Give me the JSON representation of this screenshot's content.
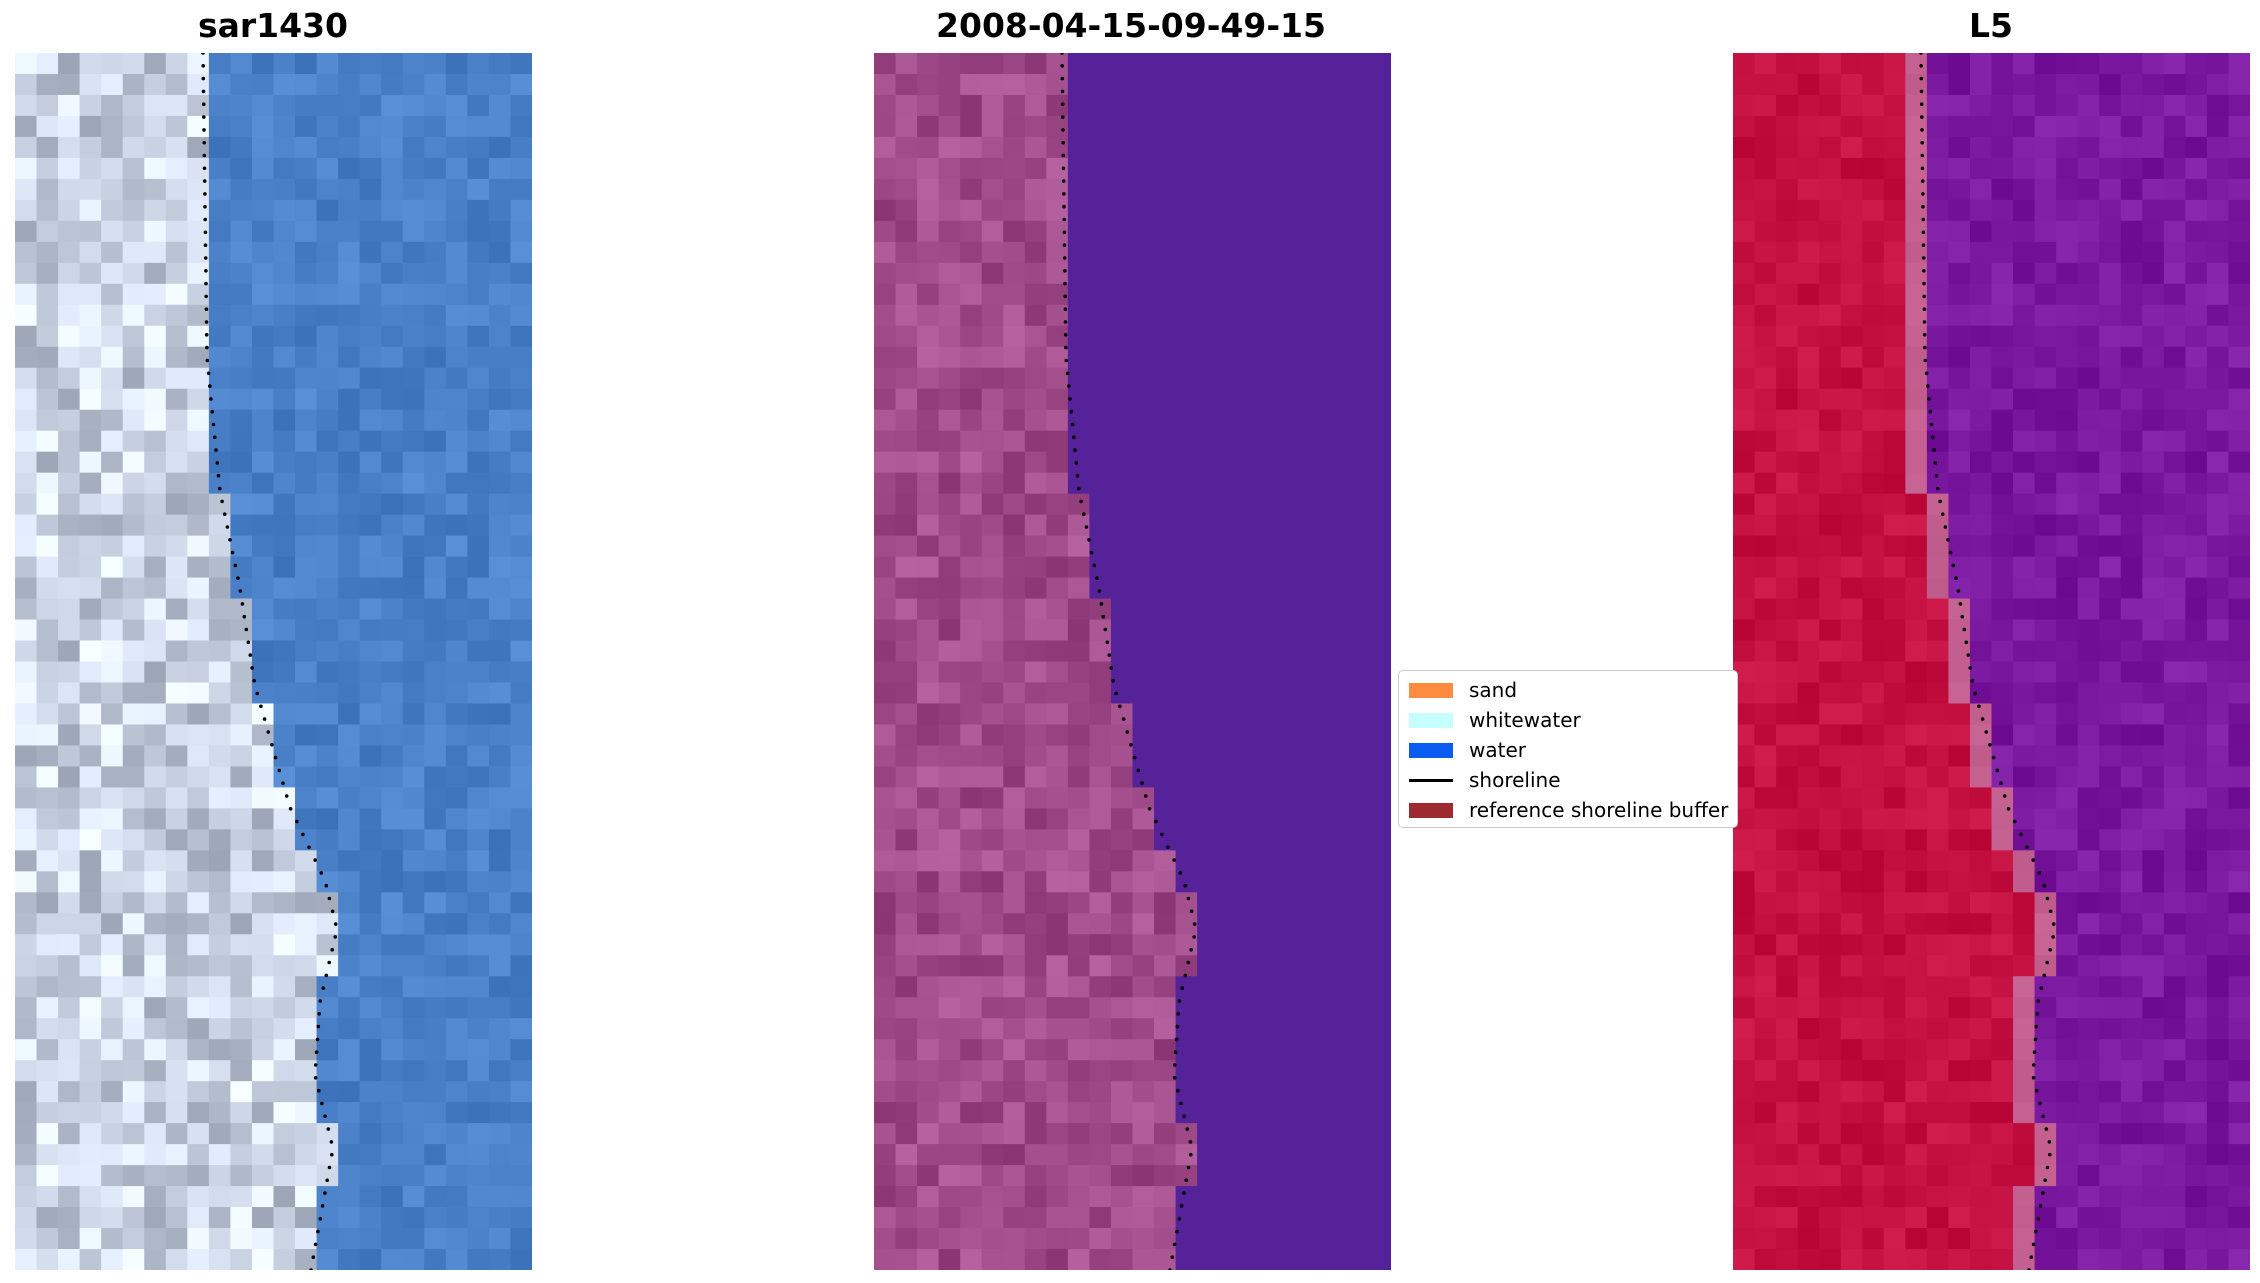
{
  "panels": [
    {
      "title": "sar1430",
      "palette": "rgb"
    },
    {
      "title": "2008-04-15-09-49-15",
      "palette": "classified"
    },
    {
      "title": "L5",
      "palette": "index"
    }
  ],
  "legend": {
    "items": [
      {
        "label": "sand",
        "color": "#ff8c3e",
        "kind": "patch"
      },
      {
        "label": "whitewater",
        "color": "#c6ffff",
        "kind": "patch"
      },
      {
        "label": "water",
        "color": "#0a5cf0",
        "kind": "patch"
      },
      {
        "label": "shoreline",
        "color": "#000000",
        "kind": "line"
      },
      {
        "label": "reference shoreline buffer",
        "color": "#9c2a2f",
        "kind": "patch"
      }
    ]
  },
  "colors": {
    "rgb_water": "#4a80c8",
    "rgb_sand": "#c8d2e2",
    "classified_water": "#55229a",
    "classified_land": "#a04b8a",
    "index_land": "#c41040",
    "index_water": "#7a18a0",
    "shoreline": "#000000"
  }
}
